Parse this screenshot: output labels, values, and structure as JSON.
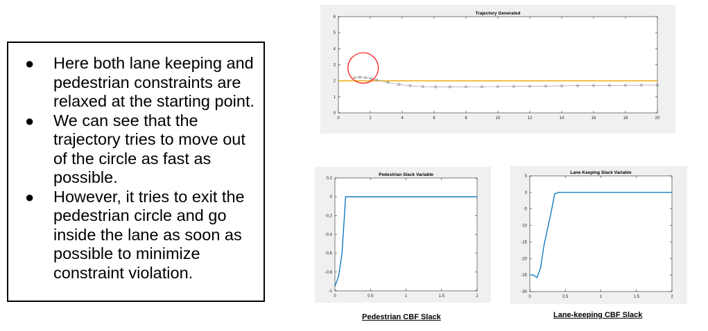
{
  "bullets": [
    "Here both lane keeping and pedestrian constraints are relaxed at the starting point.",
    "We can see that the trajectory tries to move out of the circle as fast as possible.",
    "However, it tries to exit the pedestrian circle  and go inside the lane as soon as possible to minimize constraint violation."
  ],
  "captions": {
    "pedestrian": "Pedestrian CBF Slack",
    "lane": "Lane-keeping CBF Slack"
  },
  "colors": {
    "line": "#0072BD",
    "lane": "#EDB120",
    "circle": "#ff0000",
    "markers": "#8a8a8a"
  },
  "chart_data": [
    {
      "type": "line",
      "title": "Trajectory Generated",
      "xlim": [
        0,
        20
      ],
      "ylim": [
        0,
        6
      ],
      "xticks": [
        0,
        2,
        4,
        6,
        8,
        10,
        12,
        14,
        16,
        18,
        20
      ],
      "yticks": [
        0,
        1,
        2,
        3,
        4,
        5,
        6
      ],
      "lane_y": 2,
      "circle": {
        "cx": 1.55,
        "cy": 2.8,
        "r": 0.95
      },
      "trajectory": {
        "x": [
          1,
          1.35,
          1.7,
          2.05,
          2.4,
          2.75,
          3.1,
          3.45,
          3.8,
          4.15,
          4.5,
          4.9,
          5.3,
          5.7,
          6.1,
          6.5,
          7.0,
          7.5,
          8.0,
          8.5,
          9.0,
          9.5,
          10,
          10.5,
          11,
          11.5,
          12,
          12.5,
          13,
          13.5,
          14,
          14.5,
          15,
          15.5,
          16,
          16.5,
          17,
          17.5,
          18,
          18.5,
          19,
          19.5,
          20
        ],
        "y": [
          2.2,
          2.22,
          2.2,
          2.14,
          2.05,
          1.98,
          1.9,
          1.83,
          1.77,
          1.72,
          1.69,
          1.66,
          1.64,
          1.63,
          1.62,
          1.62,
          1.62,
          1.62,
          1.63,
          1.63,
          1.63,
          1.64,
          1.64,
          1.65,
          1.65,
          1.66,
          1.66,
          1.67,
          1.67,
          1.68,
          1.68,
          1.69,
          1.69,
          1.7,
          1.7,
          1.71,
          1.71,
          1.72,
          1.72,
          1.72,
          1.73,
          1.73,
          1.73
        ]
      },
      "markers_x": [
        1,
        1.35,
        1.7,
        2.05,
        2.4,
        3.1,
        3.8,
        4.5,
        5.3,
        6.1,
        7.0,
        8.0,
        9.0,
        10,
        11,
        12,
        13,
        14,
        15,
        16,
        17,
        18,
        19,
        20
      ],
      "markers_y": [
        2.2,
        2.22,
        2.2,
        2.14,
        2.05,
        1.9,
        1.77,
        1.69,
        1.64,
        1.62,
        1.62,
        1.63,
        1.63,
        1.64,
        1.65,
        1.66,
        1.67,
        1.68,
        1.69,
        1.7,
        1.71,
        1.72,
        1.73,
        1.73
      ]
    },
    {
      "type": "line",
      "title": "Pedestrian Slack Variable",
      "xlim": [
        0,
        2
      ],
      "ylim": [
        -1,
        0.2
      ],
      "xticks": [
        0,
        0.5,
        1,
        1.5,
        2
      ],
      "xtick_labels": [
        "0",
        "0.5",
        "1",
        "1.5",
        "2"
      ],
      "yticks": [
        -1,
        -0.8,
        -0.6,
        -0.4,
        -0.2,
        0,
        0.2
      ],
      "ytick_labels": [
        "-1",
        "-0.8",
        "-0.6",
        "-0.4",
        "-0.2",
        "0",
        "0.2"
      ],
      "x": [
        0,
        0.05,
        0.1,
        0.15,
        2
      ],
      "y": [
        -0.95,
        -0.85,
        -0.6,
        0,
        0
      ]
    },
    {
      "type": "line",
      "title": "Lane Keeping Slack Variable",
      "xlim": [
        0,
        2
      ],
      "ylim": [
        -30,
        5
      ],
      "xticks": [
        0,
        0.5,
        1,
        1.5,
        2
      ],
      "xtick_labels": [
        "0",
        "0.5",
        "1",
        "1.5",
        "2"
      ],
      "yticks": [
        -30,
        -25,
        -20,
        -15,
        -10,
        -5,
        0,
        5
      ],
      "ytick_labels": [
        "-30",
        "-25",
        "-20",
        "-15",
        "-10",
        "-5",
        "0",
        "5"
      ],
      "x": [
        0,
        0.05,
        0.1,
        0.15,
        0.2,
        0.25,
        0.3,
        0.35,
        0.4,
        2
      ],
      "y": [
        -25,
        -25,
        -25.8,
        -23,
        -16,
        -11,
        -6,
        -0.5,
        0,
        0
      ]
    }
  ]
}
